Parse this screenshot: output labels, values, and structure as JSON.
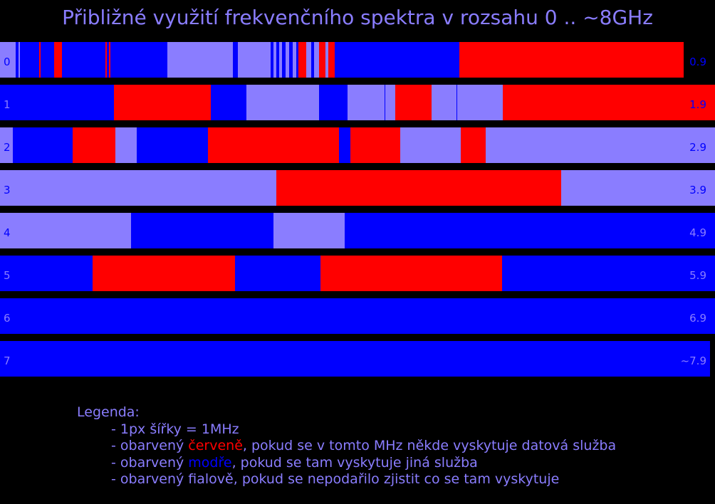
{
  "title": "Přibližné využití frekvenčního spektra v rozsahu 0 .. ~8GHz",
  "colors": {
    "data": "#ff0000",
    "other": "#0000ff",
    "unknown": "#8a7dff",
    "background": "#000000"
  },
  "chart_data": {
    "type": "bar",
    "unit": "MHz",
    "rows": [
      {
        "start_label": "0",
        "end_label": "0.9",
        "segments": [
          {
            "c": "unknown",
            "s": 0,
            "e": 22
          },
          {
            "c": "other",
            "s": 22,
            "e": 235
          },
          {
            "c": "unknown",
            "s": 235,
            "e": 327
          },
          {
            "c": "other",
            "s": 327,
            "e": 334
          },
          {
            "c": "unknown",
            "s": 334,
            "e": 380
          },
          {
            "c": "other",
            "s": 380,
            "e": 470
          },
          {
            "c": "other",
            "s": 470,
            "e": 645
          },
          {
            "c": "data",
            "s": 645,
            "e": 960
          }
        ],
        "marks": [
          {
            "c": "unknown",
            "s": 26,
            "e": 28
          },
          {
            "c": "data",
            "s": 55,
            "e": 57
          },
          {
            "c": "data",
            "s": 76,
            "e": 87
          },
          {
            "c": "data",
            "s": 148,
            "e": 150
          },
          {
            "c": "data",
            "s": 153,
            "e": 155
          },
          {
            "c": "unknown",
            "s": 384,
            "e": 388
          },
          {
            "c": "unknown",
            "s": 392,
            "e": 396
          },
          {
            "c": "unknown",
            "s": 401,
            "e": 406
          },
          {
            "c": "unknown",
            "s": 411,
            "e": 416
          },
          {
            "c": "data",
            "s": 419,
            "e": 430
          },
          {
            "c": "unknown",
            "s": 430,
            "e": 437
          },
          {
            "c": "unknown",
            "s": 441,
            "e": 448
          },
          {
            "c": "data",
            "s": 448,
            "e": 457
          },
          {
            "c": "unknown",
            "s": 457,
            "e": 461
          },
          {
            "c": "data",
            "s": 461,
            "e": 470
          }
        ]
      },
      {
        "start_label": "1",
        "end_label": "1.9",
        "segments": [
          {
            "c": "other",
            "s": 0,
            "e": 160
          },
          {
            "c": "data",
            "s": 160,
            "e": 296
          },
          {
            "c": "other",
            "s": 296,
            "e": 346
          },
          {
            "c": "unknown",
            "s": 346,
            "e": 448
          },
          {
            "c": "other",
            "s": 448,
            "e": 488
          },
          {
            "c": "unknown",
            "s": 488,
            "e": 555
          },
          {
            "c": "data",
            "s": 555,
            "e": 606
          },
          {
            "c": "unknown",
            "s": 606,
            "e": 706
          },
          {
            "c": "data",
            "s": 706,
            "e": 1004
          }
        ],
        "marks": [
          {
            "c": "other",
            "s": 540,
            "e": 541
          },
          {
            "c": "other",
            "s": 641,
            "e": 642
          }
        ]
      },
      {
        "start_label": "2",
        "end_label": "2.9",
        "segments": [
          {
            "c": "unknown",
            "s": 0,
            "e": 18
          },
          {
            "c": "other",
            "s": 18,
            "e": 102
          },
          {
            "c": "data",
            "s": 102,
            "e": 162
          },
          {
            "c": "unknown",
            "s": 162,
            "e": 192
          },
          {
            "c": "other",
            "s": 192,
            "e": 292
          },
          {
            "c": "data",
            "s": 292,
            "e": 476
          },
          {
            "c": "other",
            "s": 476,
            "e": 492
          },
          {
            "c": "data",
            "s": 492,
            "e": 562
          },
          {
            "c": "unknown",
            "s": 562,
            "e": 647
          },
          {
            "c": "data",
            "s": 647,
            "e": 682
          },
          {
            "c": "unknown",
            "s": 682,
            "e": 1004
          }
        ],
        "marks": []
      },
      {
        "start_label": "3",
        "end_label": "3.9",
        "segments": [
          {
            "c": "unknown",
            "s": 0,
            "e": 388
          },
          {
            "c": "data",
            "s": 388,
            "e": 788
          },
          {
            "c": "unknown",
            "s": 788,
            "e": 1004
          }
        ],
        "marks": []
      },
      {
        "start_label": "4",
        "end_label": "4.9",
        "segments": [
          {
            "c": "unknown",
            "s": 0,
            "e": 184
          },
          {
            "c": "other",
            "s": 184,
            "e": 384
          },
          {
            "c": "unknown",
            "s": 384,
            "e": 484
          },
          {
            "c": "other",
            "s": 484,
            "e": 1004
          }
        ],
        "marks": []
      },
      {
        "start_label": "5",
        "end_label": "5.9",
        "segments": [
          {
            "c": "other",
            "s": 0,
            "e": 130
          },
          {
            "c": "data",
            "s": 130,
            "e": 330
          },
          {
            "c": "other",
            "s": 330,
            "e": 450
          },
          {
            "c": "data",
            "s": 450,
            "e": 705
          },
          {
            "c": "other",
            "s": 705,
            "e": 1004
          }
        ],
        "marks": []
      },
      {
        "start_label": "6",
        "end_label": "6.9",
        "segments": [
          {
            "c": "other",
            "s": 0,
            "e": 1004
          }
        ],
        "marks": []
      },
      {
        "start_label": "7",
        "end_label": "~7.9",
        "segments": [
          {
            "c": "other",
            "s": 0,
            "e": 997
          }
        ],
        "marks": []
      }
    ]
  },
  "legend": {
    "heading": "Legenda:",
    "item1": "- 1px šířky = 1MHz",
    "item2_pre": "- obarvený ",
    "item2_colored": "červeně",
    "item2_post": ", pokud se v tomto MHz někde vyskytuje datová služba",
    "item3_pre": "- obarvený ",
    "item3_colored": "modře",
    "item3_post": ", pokud se tam vyskytuje jiná služba",
    "item4": "- obarvený fialově, pokud se nepodařilo zjistit co se tam vyskytuje"
  }
}
